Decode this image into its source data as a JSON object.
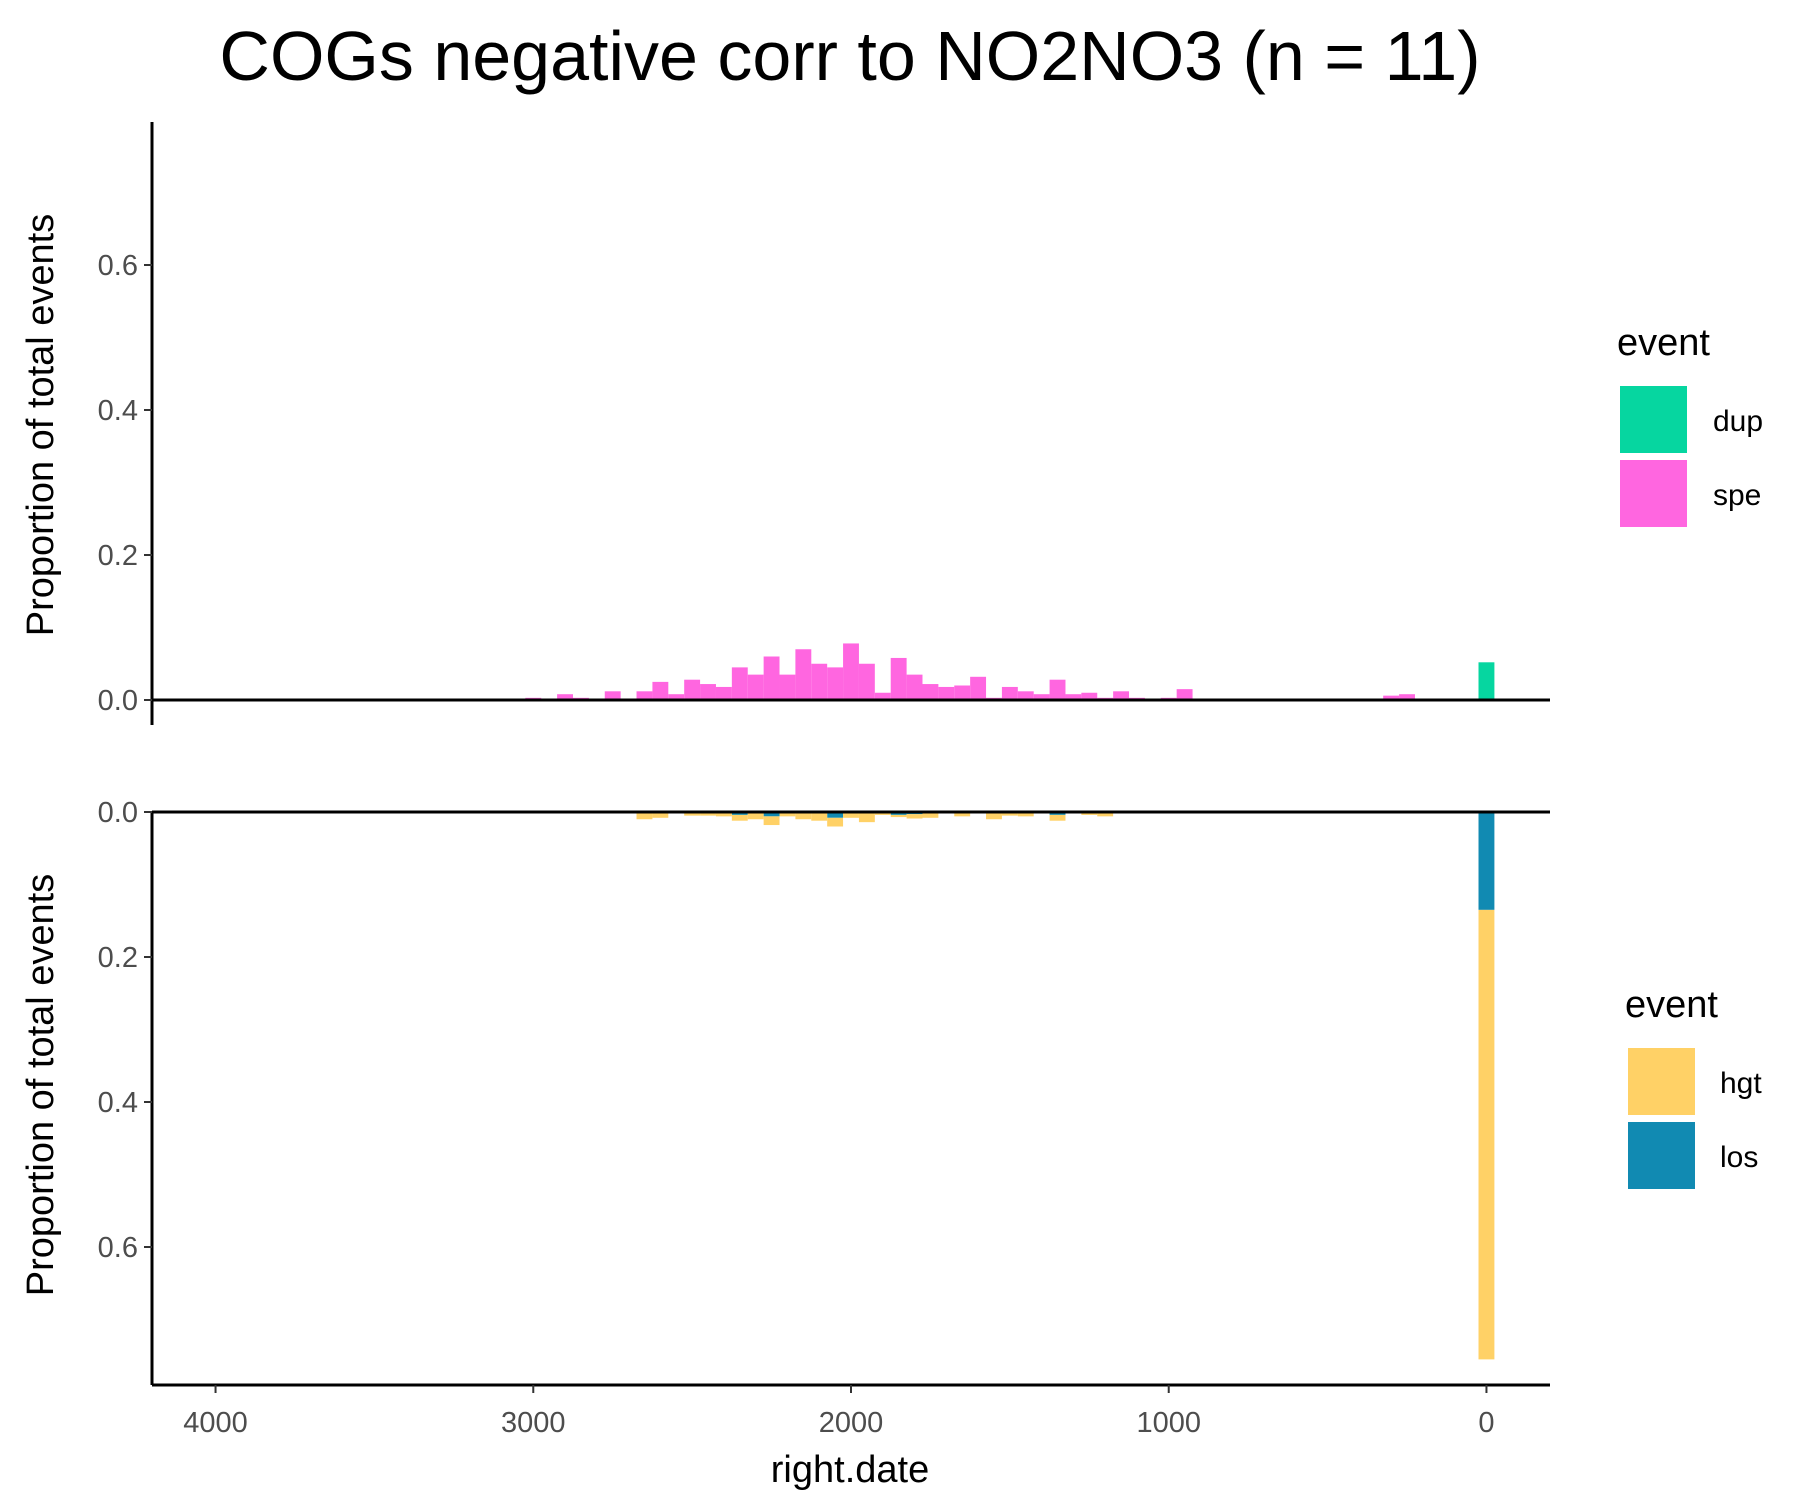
{
  "chart_data": {
    "type": "bar",
    "title": "COGs negative corr to NO2NO3 (n = 11)",
    "xlabel": "right.date",
    "x_reversed": true,
    "xlim": [
      4200,
      -200
    ],
    "x_ticks": [
      4000,
      3000,
      2000,
      1000,
      0
    ],
    "x_tick_labels": [
      "4000",
      "3000",
      "2000",
      "1000",
      "0"
    ],
    "bin_width": 50,
    "panels": [
      {
        "id": "top",
        "ylabel": "Proportion of total events",
        "ylim": [
          0,
          0.78
        ],
        "y_ticks": [
          0,
          0.2,
          0.4,
          0.6
        ],
        "y_tick_labels": [
          "0.0",
          "0.2",
          "0.4",
          "0.6"
        ],
        "direction": "up",
        "legend": {
          "title": "event",
          "entries": [
            {
              "label": "dup",
              "color": "#06d6a0"
            },
            {
              "label": "spe",
              "color": "#ff66e0"
            }
          ]
        },
        "series": [
          {
            "name": "spe",
            "color": "#ff66e0",
            "x": [
              3000,
              2900,
              2850,
              2750,
              2650,
              2600,
              2550,
              2500,
              2450,
              2400,
              2350,
              2300,
              2250,
              2200,
              2150,
              2100,
              2050,
              2000,
              1950,
              1900,
              1850,
              1800,
              1750,
              1700,
              1650,
              1600,
              1550,
              1500,
              1450,
              1400,
              1350,
              1300,
              1250,
              1200,
              1150,
              1100,
              1000,
              950,
              300,
              250
            ],
            "values": [
              0.003,
              0.008,
              0.003,
              0.012,
              0.012,
              0.025,
              0.008,
              0.028,
              0.022,
              0.018,
              0.045,
              0.035,
              0.06,
              0.035,
              0.07,
              0.05,
              0.045,
              0.078,
              0.05,
              0.01,
              0.058,
              0.035,
              0.022,
              0.018,
              0.02,
              0.032,
              0.003,
              0.018,
              0.012,
              0.008,
              0.028,
              0.008,
              0.01,
              0.003,
              0.012,
              0.003,
              0.003,
              0.015,
              0.006,
              0.008
            ]
          },
          {
            "name": "dup",
            "color": "#06d6a0",
            "x": [
              0
            ],
            "values": [
              0.052
            ]
          }
        ]
      },
      {
        "id": "bottom",
        "ylabel": "Proportion of total events",
        "ylim": [
          0,
          0.78
        ],
        "y_ticks": [
          0,
          0.2,
          0.4,
          0.6
        ],
        "y_tick_labels": [
          "0.0",
          "0.2",
          "0.4",
          "0.6"
        ],
        "direction": "down",
        "legend": {
          "title": "event",
          "entries": [
            {
              "label": "hgt",
              "color": "#ffd166"
            },
            {
              "label": "los",
              "color": "#118ab2"
            }
          ]
        },
        "series": [
          {
            "name": "los",
            "color": "#118ab2",
            "x": [
              2350,
              2250,
              2050,
              1850,
              1800,
              1350,
              0
            ],
            "values": [
              0.004,
              0.006,
              0.008,
              0.004,
              0.003,
              0.004,
              0.135
            ]
          },
          {
            "name": "hgt",
            "color": "#ffd166",
            "x": [
              2650,
              2600,
              2500,
              2450,
              2400,
              2350,
              2300,
              2250,
              2200,
              2150,
              2100,
              2050,
              2000,
              1950,
              1900,
              1850,
              1800,
              1750,
              1650,
              1550,
              1500,
              1450,
              1350,
              1250,
              1200,
              0
            ],
            "values": [
              0.01,
              0.008,
              0.005,
              0.005,
              0.006,
              0.008,
              0.01,
              0.012,
              0.006,
              0.01,
              0.012,
              0.012,
              0.008,
              0.014,
              0.004,
              0.003,
              0.006,
              0.008,
              0.006,
              0.01,
              0.005,
              0.006,
              0.008,
              0.004,
              0.006,
              0.62
            ]
          }
        ]
      }
    ]
  }
}
